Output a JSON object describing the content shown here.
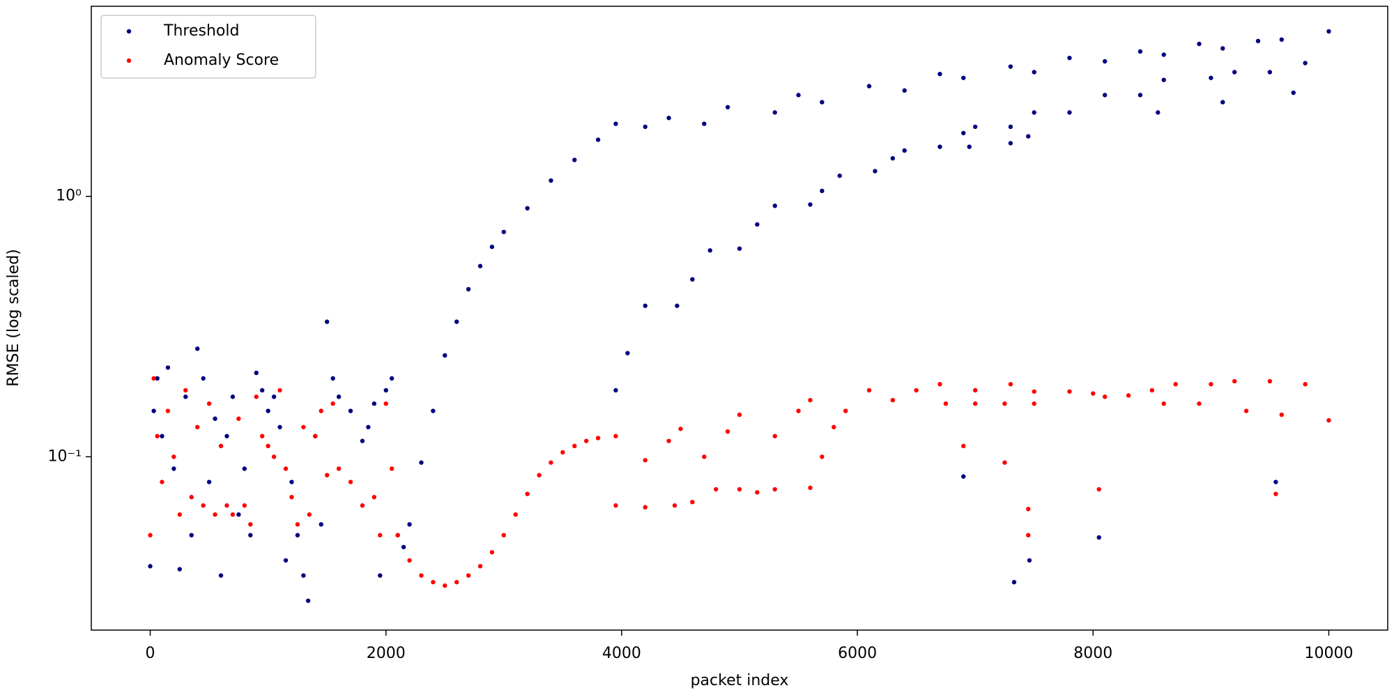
{
  "chart_data": {
    "type": "scatter",
    "xlabel": "packet index",
    "ylabel": "RMSE (log scaled)",
    "yscale": "log",
    "legend": "upper left",
    "xlim": [
      -500,
      10500
    ],
    "ylim": [
      0.0216,
      5.37
    ],
    "xticks": [
      0,
      2000,
      4000,
      6000,
      8000,
      10000
    ],
    "yticks": [
      {
        "value": 0.1,
        "label": "10⁻¹"
      },
      {
        "value": 1,
        "label": "10⁰"
      }
    ],
    "series": [
      {
        "name": "Threshold",
        "color": "#000080",
        "x": [
          0,
          30,
          60,
          100,
          150,
          200,
          250,
          300,
          350,
          400,
          450,
          500,
          550,
          600,
          650,
          700,
          750,
          800,
          850,
          900,
          950,
          1000,
          1050,
          1100,
          1150,
          1200,
          1250,
          1300,
          1340,
          1400,
          1450,
          1500,
          1550,
          1600,
          1700,
          1800,
          1850,
          1900,
          1950,
          2000,
          2050,
          2100,
          2150,
          2200,
          2300,
          2400,
          2500,
          2600,
          2700,
          2800,
          2900,
          3000,
          3200,
          3400,
          3600,
          3800,
          3950,
          4200,
          4400,
          4700,
          4900,
          5300,
          5500,
          5700,
          6100,
          6400,
          6700,
          6900,
          7300,
          7500,
          7800,
          8100,
          8400,
          8600,
          8900,
          9100,
          9400,
          9600,
          10000,
          3950,
          4050,
          4200,
          4470,
          4600,
          4750,
          5000,
          5150,
          5300,
          5600,
          5700,
          5850,
          6150,
          6300,
          6400,
          6700,
          6900,
          7000,
          7300,
          7500,
          7800,
          8100,
          8400,
          8600,
          9000,
          9200,
          9500,
          9800,
          6950,
          7300,
          7450,
          8550,
          9100,
          9700,
          7330,
          7460,
          8050,
          6900,
          9550
        ],
        "values": [
          0.038,
          0.15,
          0.2,
          0.12,
          0.22,
          0.09,
          0.037,
          0.17,
          0.05,
          0.26,
          0.2,
          0.08,
          0.14,
          0.035,
          0.12,
          0.17,
          0.06,
          0.09,
          0.05,
          0.21,
          0.18,
          0.15,
          0.17,
          0.13,
          0.04,
          0.08,
          0.05,
          0.035,
          0.028,
          0.12,
          0.055,
          0.33,
          0.2,
          0.17,
          0.15,
          0.115,
          0.13,
          0.16,
          0.035,
          0.18,
          0.2,
          0.05,
          0.045,
          0.055,
          0.095,
          0.15,
          0.245,
          0.33,
          0.44,
          0.54,
          0.64,
          0.73,
          0.9,
          1.15,
          1.38,
          1.65,
          1.9,
          1.85,
          2.0,
          1.9,
          2.2,
          2.1,
          2.45,
          2.3,
          2.65,
          2.55,
          2.95,
          2.85,
          3.15,
          3.0,
          3.4,
          3.3,
          3.6,
          3.5,
          3.85,
          3.7,
          3.95,
          4.0,
          4.3,
          0.18,
          0.25,
          0.38,
          0.38,
          0.48,
          0.62,
          0.63,
          0.78,
          0.92,
          0.93,
          1.05,
          1.2,
          1.25,
          1.4,
          1.5,
          1.55,
          1.75,
          1.85,
          1.85,
          2.1,
          2.1,
          2.45,
          2.45,
          2.8,
          2.85,
          3.0,
          3.0,
          3.25,
          1.55,
          1.6,
          1.7,
          2.1,
          2.3,
          2.5,
          0.033,
          0.04,
          0.049,
          0.084,
          0.08
        ]
      },
      {
        "name": "Anomaly Score",
        "color": "#ff0000",
        "x": [
          0,
          30,
          60,
          100,
          150,
          200,
          250,
          300,
          350,
          400,
          450,
          500,
          550,
          600,
          650,
          700,
          750,
          800,
          850,
          900,
          950,
          1000,
          1050,
          1100,
          1150,
          1200,
          1250,
          1300,
          1350,
          1400,
          1450,
          1500,
          1550,
          1600,
          1700,
          1800,
          1900,
          1950,
          2000,
          2050,
          2100,
          2200,
          2300,
          2400,
          2500,
          2600,
          2700,
          2800,
          2900,
          3000,
          3100,
          3200,
          3300,
          3400,
          3500,
          3600,
          3700,
          3800,
          3950,
          4200,
          4400,
          4500,
          4700,
          4900,
          5000,
          5300,
          5500,
          5600,
          5900,
          6100,
          6300,
          6500,
          6700,
          7000,
          7300,
          7500,
          7800,
          8000,
          8300,
          8500,
          8700,
          9000,
          9200,
          9500,
          9800,
          3950,
          4200,
          4450,
          4600,
          4800,
          5000,
          5150,
          5300,
          5600,
          5700,
          5800,
          6750,
          7000,
          7250,
          7500,
          8100,
          8600,
          8900,
          9300,
          9600,
          10000,
          7450,
          7450,
          8050,
          9550,
          6900,
          7250
        ],
        "values": [
          0.05,
          0.2,
          0.12,
          0.08,
          0.15,
          0.1,
          0.06,
          0.18,
          0.07,
          0.13,
          0.065,
          0.16,
          0.06,
          0.11,
          0.065,
          0.06,
          0.14,
          0.065,
          0.055,
          0.17,
          0.12,
          0.11,
          0.1,
          0.18,
          0.09,
          0.07,
          0.055,
          0.13,
          0.06,
          0.12,
          0.15,
          0.085,
          0.16,
          0.09,
          0.08,
          0.065,
          0.07,
          0.05,
          0.16,
          0.09,
          0.05,
          0.04,
          0.035,
          0.033,
          0.032,
          0.033,
          0.035,
          0.038,
          0.043,
          0.05,
          0.06,
          0.072,
          0.085,
          0.095,
          0.104,
          0.11,
          0.115,
          0.118,
          0.12,
          0.097,
          0.115,
          0.128,
          0.1,
          0.125,
          0.145,
          0.12,
          0.15,
          0.165,
          0.15,
          0.18,
          0.165,
          0.18,
          0.19,
          0.18,
          0.19,
          0.178,
          0.178,
          0.175,
          0.172,
          0.18,
          0.19,
          0.19,
          0.195,
          0.195,
          0.19,
          0.065,
          0.064,
          0.065,
          0.067,
          0.075,
          0.075,
          0.073,
          0.075,
          0.076,
          0.1,
          0.13,
          0.16,
          0.16,
          0.16,
          0.16,
          0.17,
          0.16,
          0.16,
          0.15,
          0.145,
          0.138,
          0.063,
          0.05,
          0.075,
          0.072,
          0.11,
          0.095
        ]
      }
    ]
  }
}
